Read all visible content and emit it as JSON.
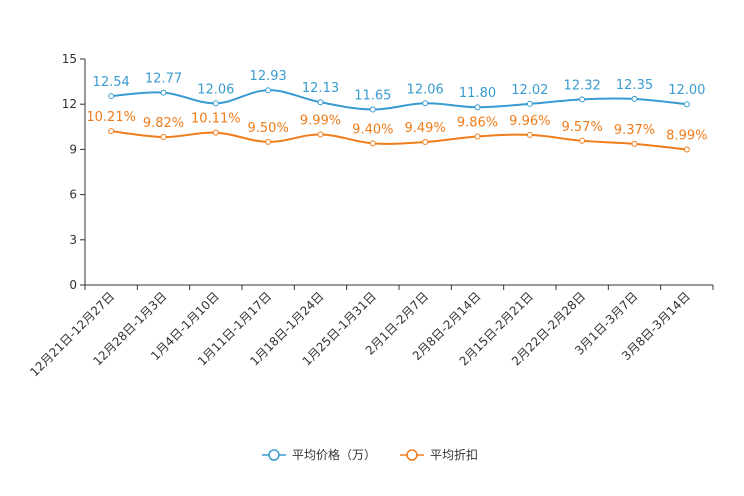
{
  "chart_data": {
    "type": "line",
    "title": "",
    "xlabel": "",
    "ylabel": "",
    "ylim": [
      0,
      15
    ],
    "yticks": [
      0,
      3,
      6,
      9,
      12,
      15
    ],
    "grid": false,
    "legend_position": "bottom-center",
    "categories": [
      "12月21日-12月27日",
      "12月28日-1月3日",
      "1月4日-1月10日",
      "1月11日-1月17日",
      "1月18日-1月24日",
      "1月25日-1月31日",
      "2月1日-2月7日",
      "2月8日-2月14日",
      "2月15日-2月21日",
      "2月22日-2月28日",
      "3月1日-3月7日",
      "3月8日-3月14日"
    ],
    "series": [
      {
        "name": "平均价格（万）",
        "color": "#3a9bd0",
        "values": [
          12.54,
          12.77,
          12.06,
          12.93,
          12.13,
          11.65,
          12.06,
          11.8,
          12.02,
          12.32,
          12.35,
          12.0
        ],
        "labels": [
          "12.54",
          "12.77",
          "12.06",
          "12.93",
          "12.13",
          "11.65",
          "12.06",
          "11.80",
          "12.02",
          "12.32",
          "12.35",
          "12.00"
        ]
      },
      {
        "name": "平均折扣",
        "color": "#f07c1a",
        "values": [
          10.21,
          9.82,
          10.11,
          9.5,
          9.99,
          9.4,
          9.49,
          9.86,
          9.96,
          9.57,
          9.37,
          8.99
        ],
        "labels": [
          "10.21%",
          "9.82%",
          "10.11%",
          "9.50%",
          "9.99%",
          "9.40%",
          "9.49%",
          "9.86%",
          "9.96%",
          "9.57%",
          "9.37%",
          "8.99%"
        ]
      }
    ]
  }
}
